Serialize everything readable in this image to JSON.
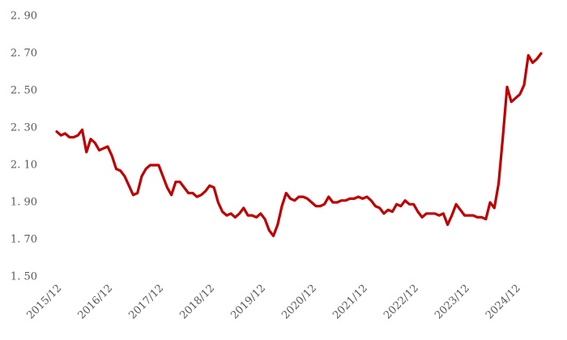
{
  "chart_data": {
    "type": "line",
    "categories": [
      "2015/12",
      null,
      null,
      null,
      null,
      null,
      null,
      null,
      null,
      null,
      null,
      null,
      "2016/12",
      null,
      null,
      null,
      null,
      null,
      null,
      null,
      null,
      null,
      null,
      null,
      "2017/12",
      null,
      null,
      null,
      null,
      null,
      null,
      null,
      null,
      null,
      null,
      null,
      "2018/12",
      null,
      null,
      null,
      null,
      null,
      null,
      null,
      null,
      null,
      null,
      null,
      "2019/12",
      null,
      null,
      null,
      null,
      null,
      null,
      null,
      null,
      null,
      null,
      null,
      "2020/12",
      null,
      null,
      null,
      null,
      null,
      null,
      null,
      null,
      null,
      null,
      null,
      "2021/12",
      null,
      null,
      null,
      null,
      null,
      null,
      null,
      null,
      null,
      null,
      null,
      "2022/12",
      null,
      null,
      null,
      null,
      null,
      null,
      null,
      null,
      null,
      null,
      null,
      "2023/12",
      null,
      null,
      null,
      null,
      null,
      null,
      null,
      null,
      null,
      null,
      null,
      "2024/12",
      null,
      null,
      null,
      null,
      null,
      null
    ],
    "values": [
      2.28,
      2.26,
      2.27,
      2.25,
      2.25,
      2.26,
      2.29,
      2.17,
      2.24,
      2.22,
      2.18,
      2.19,
      2.2,
      2.15,
      2.08,
      2.07,
      2.04,
      1.99,
      1.94,
      1.95,
      2.04,
      2.08,
      2.1,
      2.1,
      2.1,
      2.04,
      1.98,
      1.94,
      2.01,
      2.01,
      1.98,
      1.95,
      1.95,
      1.93,
      1.94,
      1.96,
      1.99,
      1.98,
      1.9,
      1.85,
      1.83,
      1.84,
      1.82,
      1.84,
      1.87,
      1.83,
      1.83,
      1.82,
      1.84,
      1.81,
      1.75,
      1.72,
      1.78,
      1.88,
      1.95,
      1.92,
      1.91,
      1.93,
      1.93,
      1.92,
      1.9,
      1.88,
      1.88,
      1.89,
      1.93,
      1.9,
      1.9,
      1.91,
      1.91,
      1.92,
      1.92,
      1.93,
      1.92,
      1.93,
      1.91,
      1.88,
      1.87,
      1.84,
      1.86,
      1.85,
      1.89,
      1.88,
      1.91,
      1.89,
      1.89,
      1.85,
      1.82,
      1.84,
      1.84,
      1.84,
      1.83,
      1.84,
      1.78,
      1.83,
      1.89,
      1.86,
      1.83,
      1.83,
      1.83,
      1.82,
      1.82,
      1.81,
      1.9,
      1.87,
      2.0,
      2.25,
      2.52,
      2.44,
      2.46,
      2.48,
      2.53,
      2.69,
      2.65,
      2.67,
      2.7
    ],
    "color": "#c00000",
    "ylim": [
      1.5,
      2.9
    ],
    "yticks": [
      {
        "value": 1.5,
        "label": "1. 50"
      },
      {
        "value": 1.7,
        "label": "1. 70"
      },
      {
        "value": 1.9,
        "label": "1. 90"
      },
      {
        "value": 2.1,
        "label": "2. 10"
      },
      {
        "value": 2.3,
        "label": "2. 30"
      },
      {
        "value": 2.5,
        "label": "2. 50"
      },
      {
        "value": 2.7,
        "label": "2. 70"
      },
      {
        "value": 2.9,
        "label": "2. 90"
      }
    ],
    "grid": false
  }
}
